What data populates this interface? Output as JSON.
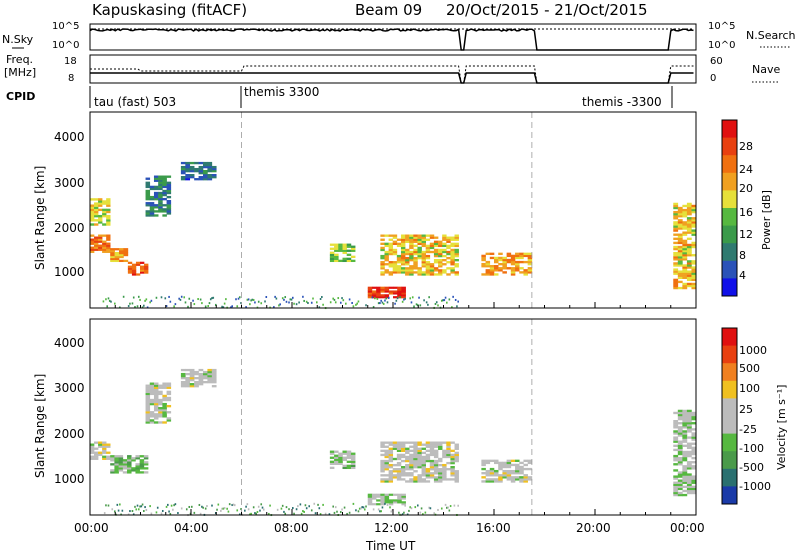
{
  "header": {
    "station": "Kapuskasing (fitACF)",
    "beam": "Beam 09",
    "date_range": "20/Oct/2015 - 21/Oct/2015"
  },
  "top_panels": {
    "nsky_label": "N.Sky",
    "nsky_ticks": [
      "10^5",
      "10^0"
    ],
    "nsearch_label": "N.Search",
    "nsearch_ticks": [
      "10^5",
      "10^0"
    ],
    "freq_label_1": "Freq.",
    "freq_label_2": "[MHz]",
    "freq_ticks": [
      "18",
      "8"
    ],
    "nave_label": "Nave",
    "nave_ticks": [
      "60",
      "0"
    ],
    "cpid_label": "CPID",
    "cpid_segments": [
      "tau (fast) 503",
      "themis 3300",
      "themis -3300"
    ]
  },
  "axes": {
    "xlabel": "Time UT",
    "xticks": [
      "00:00",
      "04:00",
      "08:00",
      "12:00",
      "16:00",
      "20:00",
      "00:00"
    ],
    "ylabel": "Slant Range [km]",
    "yticks": [
      "1000",
      "2000",
      "3000",
      "4000"
    ]
  },
  "power_colorbar": {
    "label": "Power [dB]",
    "ticks": [
      "28",
      "24",
      "20",
      "16",
      "12",
      "8",
      "4"
    ],
    "colors": [
      "#1010e8",
      "#2a52b8",
      "#2f7a70",
      "#3a9a4a",
      "#56b840",
      "#e6e03a",
      "#f0a020",
      "#f07010",
      "#e84010",
      "#e01010"
    ]
  },
  "velocity_colorbar": {
    "label": "Velocity [m s⁻¹]",
    "ticks": [
      "1000",
      "500",
      "100",
      "25",
      "-25",
      "-100",
      "-500",
      "-1000"
    ],
    "colors": [
      "#1a3aa8",
      "#2a7070",
      "#4a9a4a",
      "#56b840",
      "#bcbcbc",
      "#bcbcbc",
      "#f0c020",
      "#f08020",
      "#e84010",
      "#e01010"
    ]
  },
  "chart_data": {
    "type": "heatmap",
    "x_range_hours": [
      0,
      24
    ],
    "y_range_km": [
      180,
      4500
    ],
    "power_scale_db": [
      0,
      30
    ],
    "velocity_scale_ms": [
      -1200,
      1200
    ],
    "mode_boundaries_hours": [
      6.0,
      17.5
    ],
    "data_gaps_hours": [
      [
        14.6,
        14.8
      ],
      [
        17.6,
        23.0
      ]
    ],
    "power_blobs": [
      {
        "t0": 0.0,
        "t1": 0.8,
        "r0": 1400,
        "r1": 1800,
        "power": 22
      },
      {
        "t0": 0.8,
        "t1": 1.5,
        "r0": 1200,
        "r1": 1500,
        "power": 20
      },
      {
        "t0": 1.5,
        "t1": 2.3,
        "r0": 900,
        "r1": 1200,
        "power": 24
      },
      {
        "t0": 0.0,
        "t1": 0.8,
        "r0": 2000,
        "r1": 2600,
        "power": 16
      },
      {
        "t0": 2.2,
        "t1": 3.2,
        "r0": 2200,
        "r1": 3100,
        "power": 8
      },
      {
        "t0": 3.6,
        "t1": 5.0,
        "r0": 3000,
        "r1": 3400,
        "power": 6
      },
      {
        "t0": 9.5,
        "t1": 10.5,
        "r0": 1200,
        "r1": 1600,
        "power": 14
      },
      {
        "t0": 11.5,
        "t1": 14.6,
        "r0": 900,
        "r1": 1800,
        "power": 18
      },
      {
        "t0": 11.0,
        "t1": 12.5,
        "r0": 400,
        "r1": 650,
        "power": 26
      },
      {
        "t0": 15.5,
        "t1": 17.5,
        "r0": 900,
        "r1": 1400,
        "power": 20
      },
      {
        "t0": 23.1,
        "t1": 24.0,
        "r0": 600,
        "r1": 2500,
        "power": 18
      }
    ],
    "velocity_blobs": [
      {
        "t0": 0.0,
        "t1": 0.8,
        "r0": 1400,
        "r1": 1800,
        "velocity": 0
      },
      {
        "t0": 0.8,
        "t1": 2.3,
        "r0": 1100,
        "r1": 1500,
        "velocity": -300
      },
      {
        "t0": 2.2,
        "t1": 3.2,
        "r0": 2200,
        "r1": 3100,
        "velocity": 0
      },
      {
        "t0": 3.6,
        "t1": 5.0,
        "r0": 3000,
        "r1": 3400,
        "velocity": 0
      },
      {
        "t0": 9.5,
        "t1": 10.5,
        "r0": 1200,
        "r1": 1600,
        "velocity": -200
      },
      {
        "t0": 11.5,
        "t1": 14.6,
        "r0": 900,
        "r1": 1800,
        "velocity": 0
      },
      {
        "t0": 11.0,
        "t1": 12.5,
        "r0": 400,
        "r1": 650,
        "velocity": -150
      },
      {
        "t0": 15.5,
        "t1": 17.5,
        "r0": 900,
        "r1": 1400,
        "velocity": 0
      },
      {
        "t0": 23.1,
        "t1": 24.0,
        "r0": 600,
        "r1": 2500,
        "velocity": -150
      }
    ]
  }
}
